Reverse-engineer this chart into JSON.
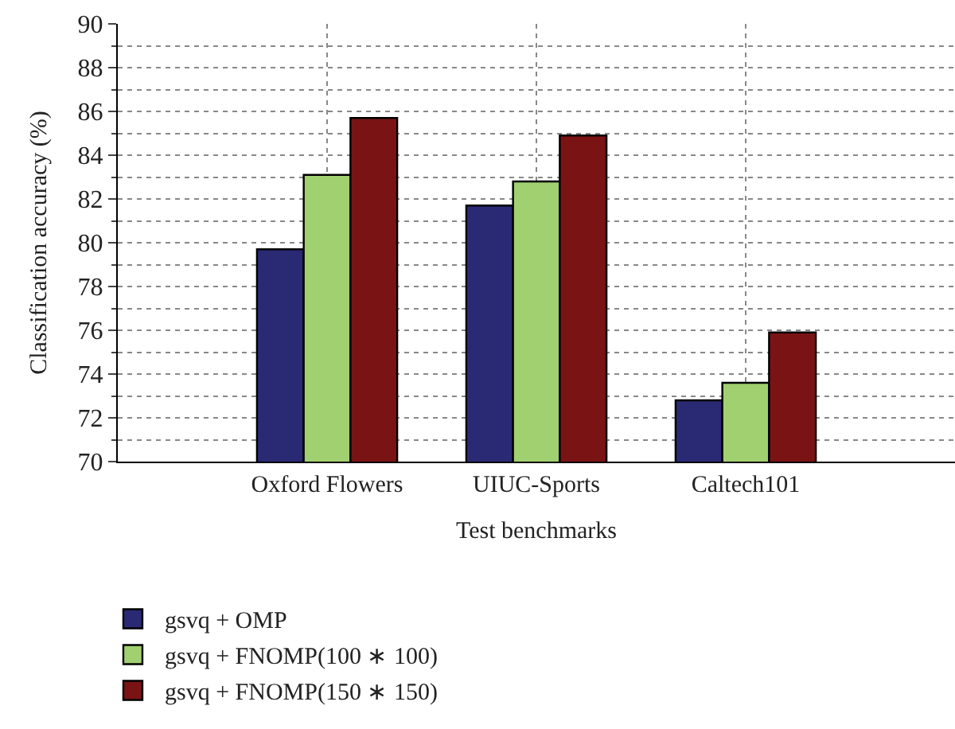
{
  "chart_data": {
    "type": "bar",
    "xlabel": "Test benchmarks",
    "ylabel": "Classification accuracy (%)",
    "categories": [
      "Oxford Flowers",
      "UIUC-Sports",
      "Caltech101"
    ],
    "series": [
      {
        "name": "gsvq + OMP",
        "color": "#2a2a74",
        "values": [
          79.7,
          81.7,
          72.8
        ]
      },
      {
        "name": "gsvq + FNOMP(100 ∗ 100)",
        "color": "#a0d070",
        "values": [
          83.1,
          82.8,
          73.6
        ]
      },
      {
        "name": "gsvq + FNOMP(150 ∗ 150)",
        "color": "#7a1414",
        "values": [
          85.7,
          84.9,
          75.9
        ]
      }
    ],
    "ylim": [
      70,
      90
    ],
    "yticks": [
      70,
      72,
      74,
      76,
      78,
      80,
      82,
      84,
      86,
      88,
      90
    ],
    "grid": true,
    "legend": "bottom left"
  }
}
